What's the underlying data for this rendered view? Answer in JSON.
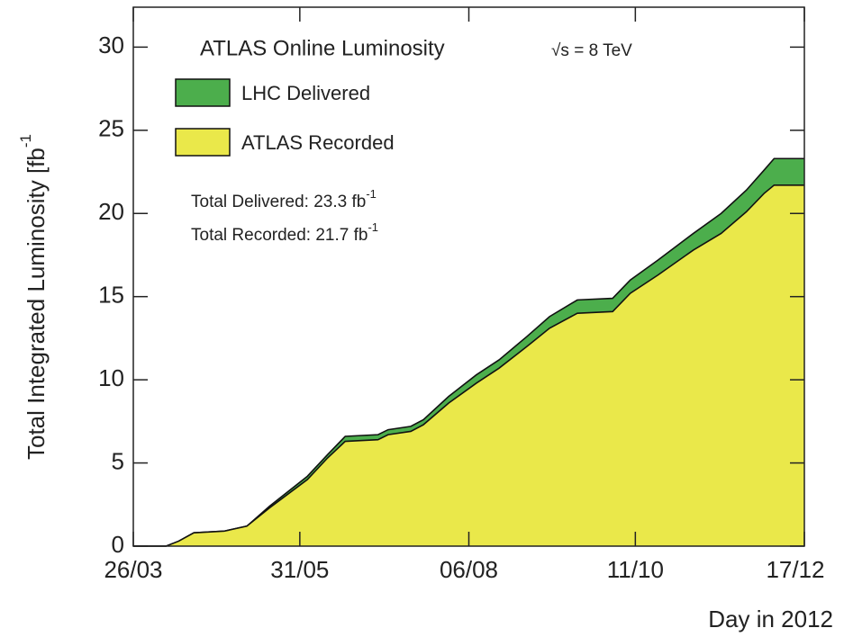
{
  "chart_data": {
    "type": "area",
    "title": "ATLAS Online Luminosity",
    "subtitle": "√s = 8 TeV",
    "x_label": "Day in 2012",
    "y_label": "Total Integrated Luminosity [fb",
    "y_label_sup": "-1",
    "annotations": [
      {
        "text": "Total Delivered: 23.3 fb",
        "sup": "-1"
      },
      {
        "text": "Total Recorded: 21.7 fb",
        "sup": "-1"
      }
    ],
    "x": [
      "26/03",
      "08/04",
      "13/04",
      "19/04",
      "01/05",
      "10/05",
      "19/05",
      "03/06",
      "11/06",
      "18/06",
      "01/07",
      "05/07",
      "14/07",
      "19/07",
      "29/07",
      "09/08",
      "18/08",
      "29/08",
      "07/09",
      "18/09",
      "02/10",
      "09/10",
      "20/10",
      "03/11",
      "14/11",
      "24/11",
      "01/12",
      "05/12",
      "17/12"
    ],
    "series": [
      {
        "name": "LHC Delivered",
        "color": "#4cae4c",
        "values": [
          0,
          0,
          0.3,
          0.8,
          0.9,
          1.2,
          2.4,
          4.2,
          5.5,
          6.6,
          6.7,
          7.0,
          7.2,
          7.6,
          9.0,
          10.3,
          11.2,
          12.6,
          13.8,
          14.8,
          14.9,
          16.0,
          17.2,
          18.8,
          20.0,
          21.4,
          22.6,
          23.3,
          23.3
        ]
      },
      {
        "name": "ATLAS Recorded",
        "color": "#eae84a",
        "values": [
          0,
          0,
          0.3,
          0.8,
          0.9,
          1.2,
          2.3,
          4.0,
          5.3,
          6.3,
          6.4,
          6.7,
          6.9,
          7.3,
          8.6,
          9.8,
          10.7,
          12.0,
          13.1,
          14.0,
          14.1,
          15.2,
          16.3,
          17.8,
          18.8,
          20.1,
          21.2,
          21.7,
          21.7
        ]
      }
    ],
    "xlim": [
      "26/03",
      "17/12"
    ],
    "xticks": [
      "26/03",
      "31/05",
      "06/08",
      "11/10",
      "17/12"
    ],
    "ylim": [
      0,
      32.4
    ],
    "yticks": [
      0,
      5,
      10,
      15,
      20,
      25,
      30
    ]
  }
}
